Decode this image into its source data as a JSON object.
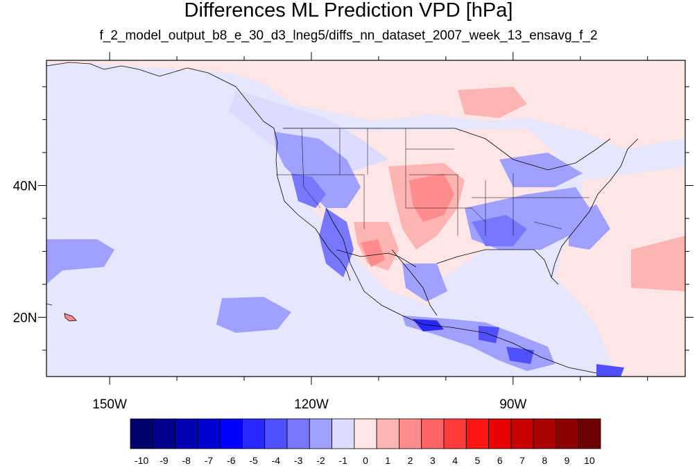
{
  "title": "Differences ML Prediction VPD [hPa]",
  "subtitle": "f_2_model_output_b8_e_30_d3_lneg5/diffs_nn_dataset_2007_week_13_ensavg_f_2",
  "axes": {
    "lon_ticks": [
      {
        "value": -150,
        "label": "150W"
      },
      {
        "value": -120,
        "label": "120W"
      },
      {
        "value": -90,
        "label": "90W"
      }
    ],
    "lat_ticks": [
      {
        "value": 40,
        "label": "40N"
      },
      {
        "value": 20,
        "label": "20N"
      }
    ],
    "lon_range": [
      -159.4,
      -64.4
    ],
    "lat_range": [
      11,
      59
    ]
  },
  "colorbar": {
    "labels": [
      "-10",
      "-9",
      "-8",
      "-7",
      "-6",
      "-5",
      "-4",
      "-3",
      "-2",
      "-1",
      "0",
      "1",
      "2",
      "3",
      "4",
      "5",
      "6",
      "7",
      "8",
      "9",
      "10"
    ],
    "colors": [
      "#00006e",
      "#00008c",
      "#0000b4",
      "#0000d2",
      "#0000ff",
      "#2828ff",
      "#5050ff",
      "#7878ff",
      "#a0a0ff",
      "#dcdcff",
      "#ffe6e6",
      "#ffb4b4",
      "#ff8c8c",
      "#ff6464",
      "#ff3c3c",
      "#ff1414",
      "#e60000",
      "#c80000",
      "#aa0000",
      "#8c0000",
      "#6e0000"
    ]
  },
  "colors": {
    "background_field": "#e6e6ff",
    "land_neutral": "#ffe6e6",
    "weak_negative": "#dcdcff",
    "moderate_negative": "#a0a0ff",
    "strong_negative": "#5050ff",
    "weak_positive": "#ffb4b4",
    "moderate_positive": "#ff8c8c"
  }
}
